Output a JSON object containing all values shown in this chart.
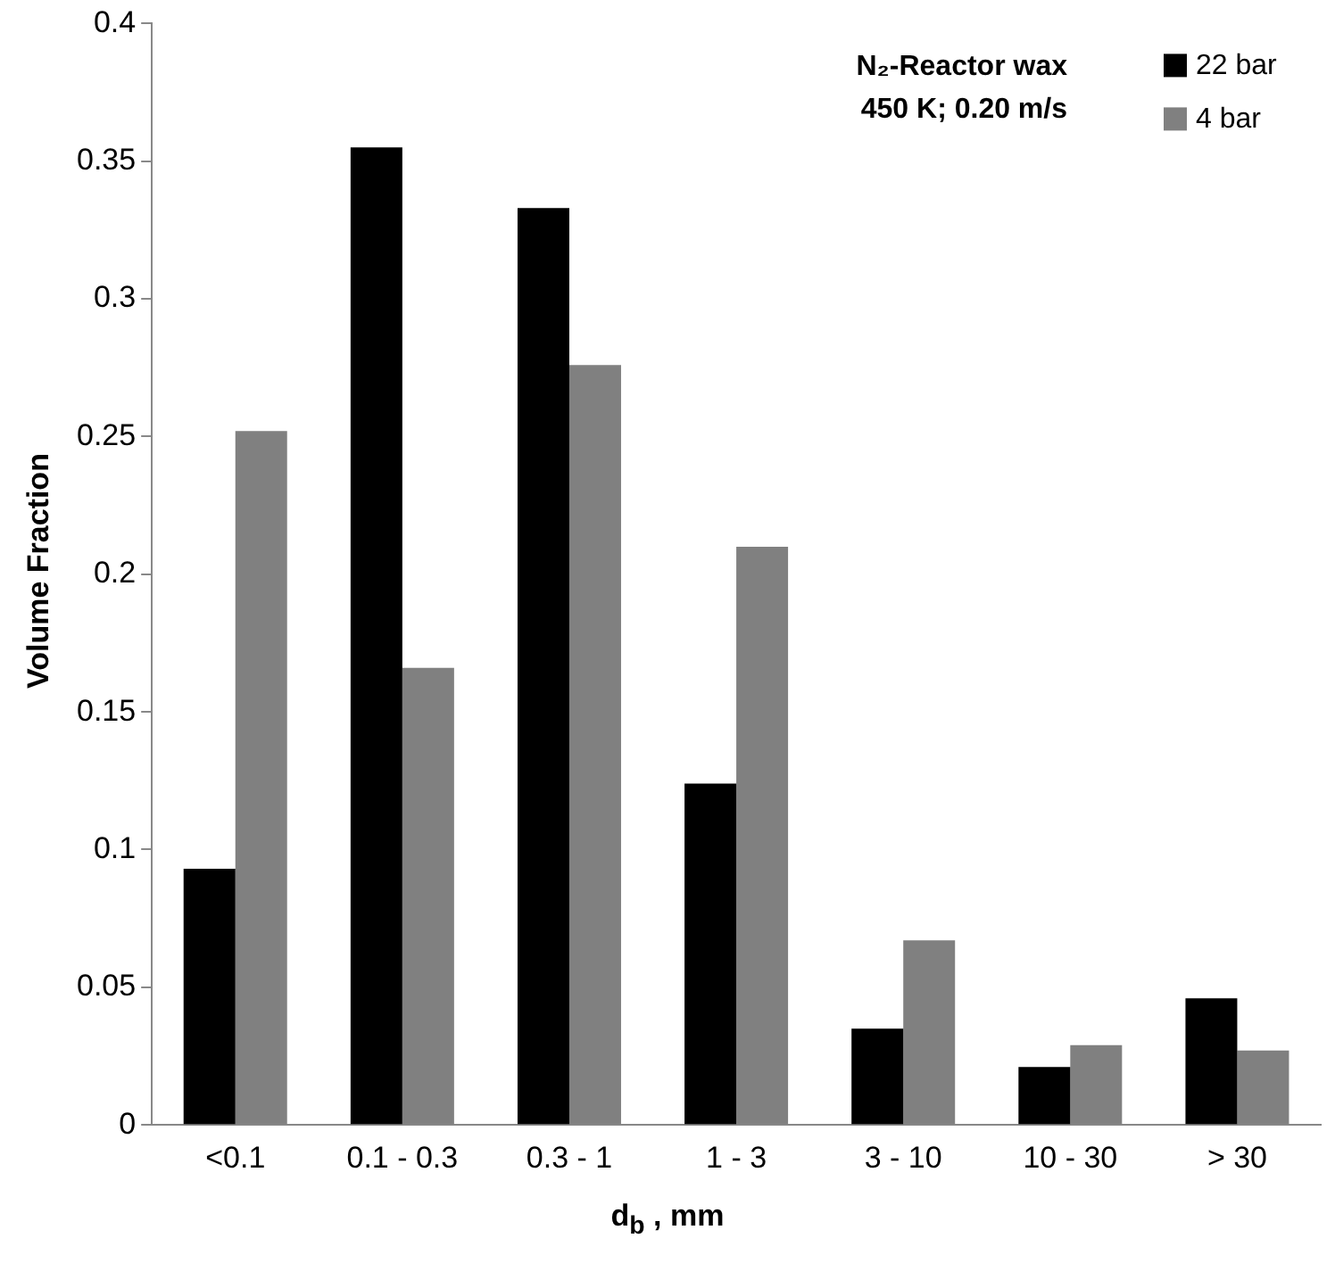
{
  "chart_data": {
    "type": "bar",
    "xlabel": "d$_{b}$ , mm",
    "ylabel": "Volume Fraction",
    "annotations": [
      "N₂-Reactor wax",
      "450 K; 0.20 m/s"
    ],
    "categories": [
      "<0.1",
      "0.1 - 0.3",
      "0.3 - 1",
      "1 - 3",
      "3 - 10",
      "10 - 30",
      "> 30"
    ],
    "series": [
      {
        "name": "22 bar",
        "color": "#000000",
        "values": [
          0.093,
          0.355,
          0.333,
          0.124,
          0.035,
          0.021,
          0.046
        ]
      },
      {
        "name": "4 bar",
        "color": "#808080",
        "values": [
          0.252,
          0.166,
          0.276,
          0.21,
          0.067,
          0.029,
          0.027
        ]
      }
    ],
    "ylim": [
      0,
      0.4
    ],
    "yticks": [
      0,
      0.05,
      0.1,
      0.15,
      0.2,
      0.25,
      0.3,
      0.35,
      0.4
    ],
    "grid": false,
    "legend": "top right"
  }
}
